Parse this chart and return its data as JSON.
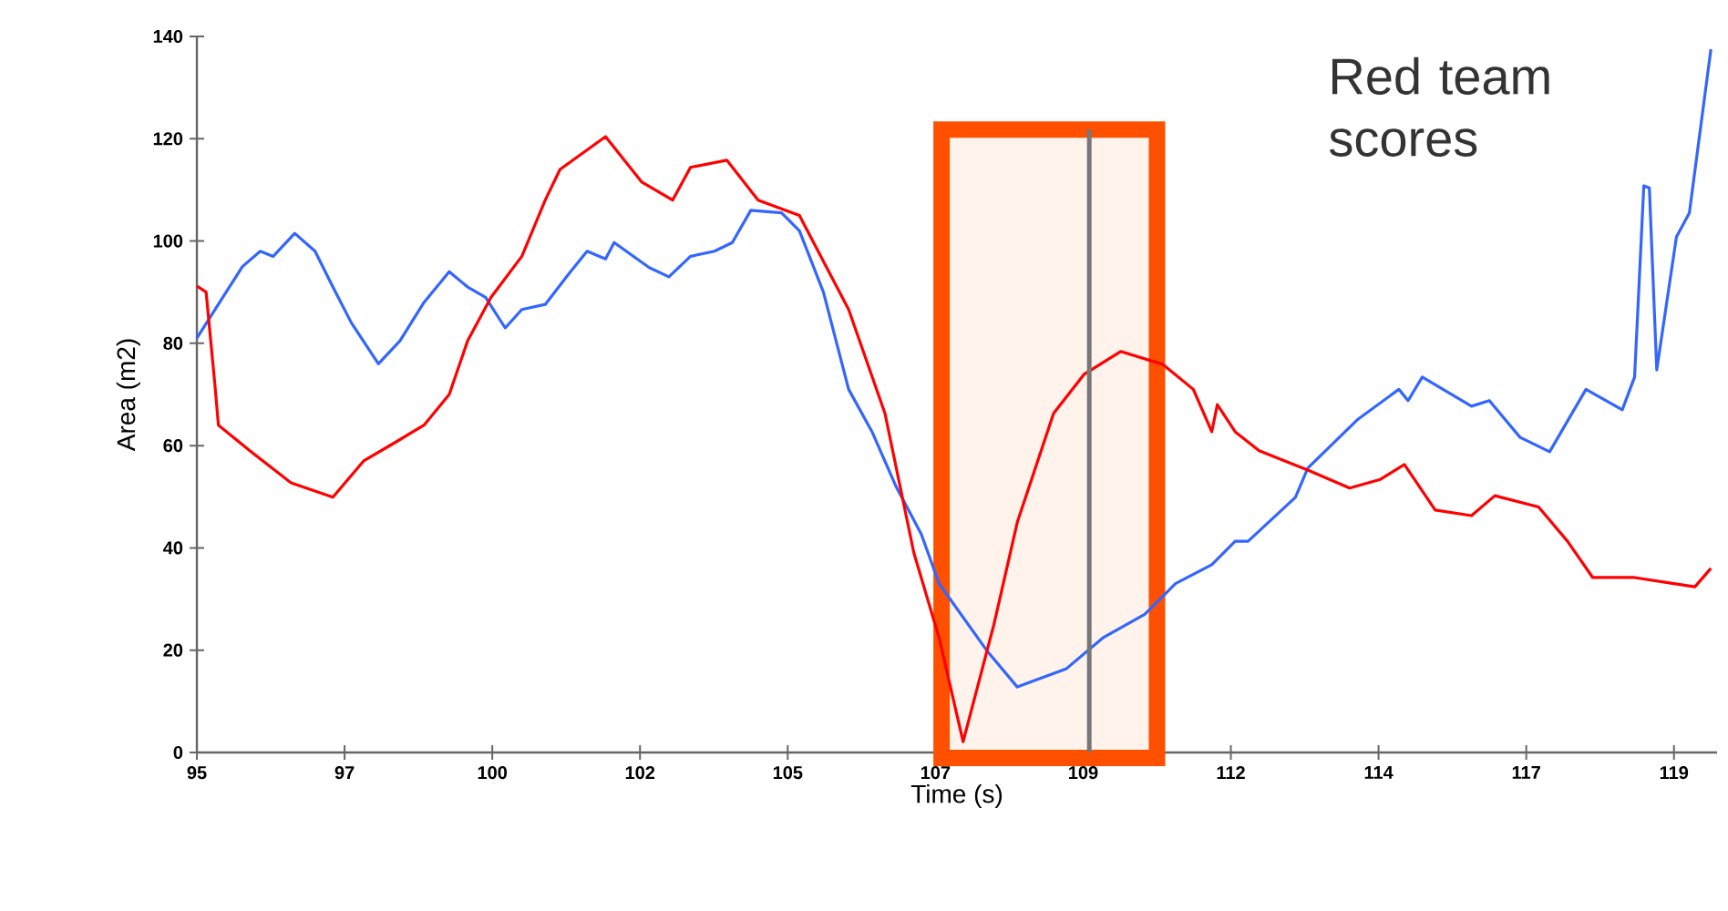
{
  "chart_data": {
    "type": "line",
    "xlabel": "Time (s)",
    "ylabel": "Area (m2)",
    "annotations": [
      "Red team scores"
    ],
    "xlim": [
      95,
      119.7
    ],
    "ylim": [
      0,
      140
    ],
    "xticks": [
      95,
      {
        "value": 97.4,
        "label": "97"
      },
      {
        "value": 99.8,
        "label": "100"
      },
      {
        "value": 102.2,
        "label": "102"
      },
      {
        "value": 104.6,
        "label": "105"
      },
      107,
      {
        "value": 109.4,
        "label": "109"
      },
      {
        "value": 111.8,
        "label": "112"
      },
      {
        "value": 114.2,
        "label": "114"
      },
      {
        "value": 116.6,
        "label": "117"
      },
      119
    ],
    "yticks": [
      0,
      20,
      40,
      60,
      80,
      100,
      120,
      140
    ],
    "marker": "none",
    "line_style": "solid",
    "ref_lines": [
      {
        "axis": "x",
        "value": 109.5,
        "color": "#777777"
      }
    ],
    "bands": [
      {
        "axis": "x",
        "from": 107.1,
        "to": 110.6,
        "color": "#ff5000"
      }
    ],
    "series": [
      {
        "color": "#3366ff",
        "x": [
          95,
          95.74,
          96.03,
          96.24,
          96.59,
          96.92,
          97.21,
          97.51,
          97.95,
          98.3,
          98.69,
          99.1,
          99.4,
          99.69,
          100.01,
          100.28,
          100.66,
          101.05,
          101.34,
          101.64,
          101.78,
          102.35,
          102.67,
          103.02,
          103.41,
          103.7,
          104.0,
          104.5,
          104.79,
          105.18,
          105.59,
          105.97,
          106.36,
          106.77,
          107.06,
          107.83,
          108.33,
          109.13,
          109.72,
          110.4,
          110.9,
          111.49,
          111.87,
          112.08,
          112.85,
          113.05,
          113.85,
          114.53,
          114.68,
          114.91,
          115.71,
          116.0,
          116.5,
          116.98,
          117.57,
          118.16,
          118.36,
          118.51,
          118.6,
          118.72,
          119.04,
          119.25,
          119.6
        ],
        "values": [
          81,
          95,
          98,
          97,
          101.5,
          98,
          91,
          84,
          76,
          80.5,
          88,
          94,
          91,
          89,
          83,
          86.6,
          87.6,
          93.7,
          98,
          96.5,
          99.7,
          94.8,
          93,
          97,
          98,
          99.7,
          106,
          105.5,
          102,
          90,
          71,
          62.7,
          52,
          42.7,
          33,
          20,
          12.8,
          16.4,
          22.4,
          27,
          33,
          36.7,
          41.3,
          41.3,
          49.9,
          55.6,
          65,
          71,
          68.8,
          73.4,
          67.7,
          68.8,
          61.6,
          58.8,
          71,
          67,
          73.4,
          110.8,
          110.4,
          74.8,
          100.8,
          105.5,
          137.5
        ]
      },
      {
        "color": "#ff0000",
        "x": [
          95,
          95.15,
          95.29,
          95.35,
          95.86,
          96.53,
          97.21,
          97.71,
          98.22,
          98.69,
          99.1,
          99.4,
          99.78,
          100.28,
          100.66,
          100.9,
          101.64,
          102.23,
          102.73,
          103.02,
          103.61,
          104.12,
          104.79,
          105.59,
          106.18,
          106.65,
          107.06,
          107.45,
          107.95,
          108.33,
          108.92,
          109.42,
          110.01,
          110.69,
          111.19,
          111.49,
          111.58,
          111.87,
          112.26,
          113.05,
          113.73,
          114.23,
          114.62,
          115.12,
          115.71,
          116.09,
          116.8,
          117.27,
          117.68,
          118.36,
          118.95,
          119.34,
          119.6
        ],
        "values": [
          91.2,
          90,
          72.3,
          64,
          59,
          52.7,
          49.9,
          57,
          60.6,
          64,
          70,
          80.5,
          89,
          97,
          108,
          114,
          120.4,
          111.5,
          108,
          114.4,
          115.8,
          108,
          105,
          86.6,
          66.3,
          39,
          22.4,
          2.1,
          25,
          45,
          66.3,
          74,
          78.4,
          75.9,
          71,
          62.7,
          68,
          62.7,
          59,
          55.2,
          51.7,
          53.4,
          56.3,
          47.4,
          46.3,
          50.2,
          48,
          41.3,
          34.2,
          34.2,
          33.1,
          32.4,
          36
        ]
      }
    ]
  }
}
